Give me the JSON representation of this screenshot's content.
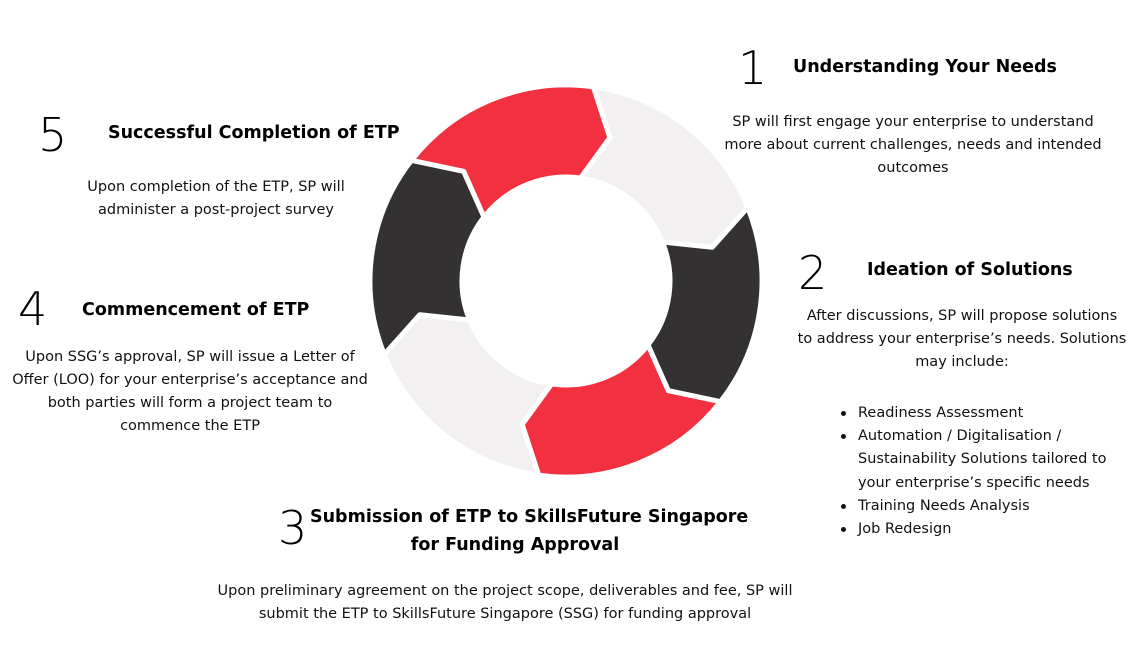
{
  "cycle": {
    "segments": [
      {
        "color": "#f2f0f0"
      },
      {
        "color": "#333132"
      },
      {
        "color": "#f2303f"
      },
      {
        "color": "#f2f0f0"
      },
      {
        "color": "#333132"
      },
      {
        "color": "#f2303f"
      }
    ]
  },
  "steps": [
    {
      "number": "1",
      "title": "Understanding Your Needs",
      "lines": [
        "SP will first engage your enterprise to understand",
        "more about current challenges, needs and intended",
        "outcomes"
      ]
    },
    {
      "number": "2",
      "title": "Ideation of Solutions",
      "lines": [
        "After discussions, SP will propose solutions",
        "to address your enterprise’s needs. Solutions",
        "may include:"
      ],
      "bullets": [
        "Readiness Assessment",
        "Automation / Digitalisation /",
        "Sustainability Solutions tailored to",
        "your enterprise’s specific needs",
        "Training Needs Analysis",
        "Job Redesign"
      ]
    },
    {
      "number": "3",
      "title_lines": [
        "Submission of ETP to SkillsFuture Singapore",
        "for Funding Approval"
      ],
      "lines": [
        "Upon preliminary agreement on the project scope, deliverables and fee, SP will",
        "submit the ETP to SkillsFuture Singapore (SSG) for funding approval"
      ]
    },
    {
      "number": "4",
      "title": "Commencement of ETP",
      "lines": [
        "Upon SSG’s approval, SP will issue a Letter of",
        "Offer (LOO) for your enterprise’s acceptance and",
        "both parties will form a project team to",
        "commence the ETP"
      ]
    },
    {
      "number": "5",
      "title": "Successful Completion of ETP",
      "lines": [
        "Upon completion of the ETP, SP will",
        "administer a post-project survey"
      ]
    }
  ]
}
